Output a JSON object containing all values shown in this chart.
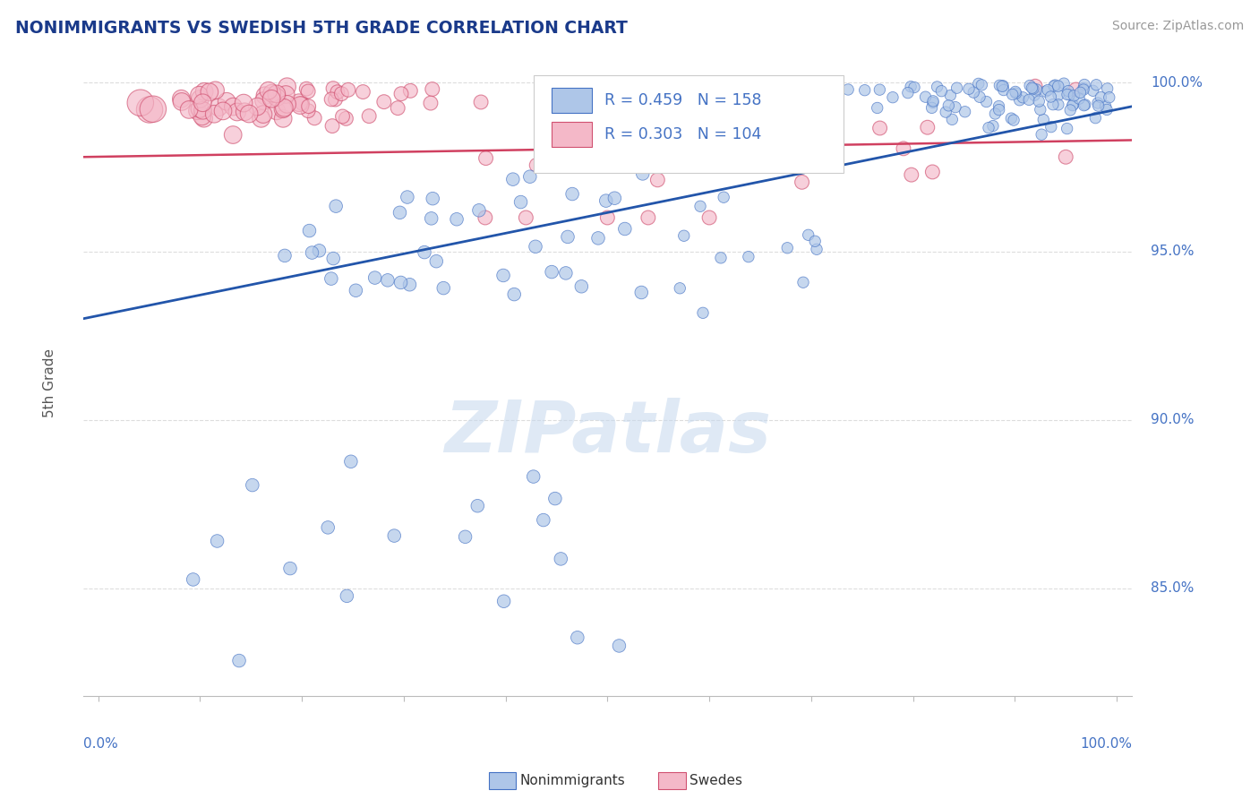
{
  "title": "NONIMMIGRANTS VS SWEDISH 5TH GRADE CORRELATION CHART",
  "source": "Source: ZipAtlas.com",
  "ylabel": "5th Grade",
  "watermark": "ZIPatlas",
  "blue_R": 0.459,
  "blue_N": 158,
  "pink_R": 0.303,
  "pink_N": 104,
  "blue_color": "#aec6e8",
  "blue_edge_color": "#4472c4",
  "pink_color": "#f4b8c8",
  "pink_edge_color": "#d05070",
  "blue_line_color": "#2255aa",
  "pink_line_color": "#d04060",
  "title_color": "#1a3a8a",
  "source_color": "#999999",
  "axis_color": "#4472c4",
  "background_color": "#ffffff",
  "grid_color": "#dddddd",
  "ylim": [
    0.818,
    1.004
  ],
  "xlim": [
    -0.015,
    1.015
  ],
  "blue_trend_y0": 0.93,
  "blue_trend_y1": 0.993,
  "pink_trend_y0": 0.978,
  "pink_trend_y1": 0.983
}
